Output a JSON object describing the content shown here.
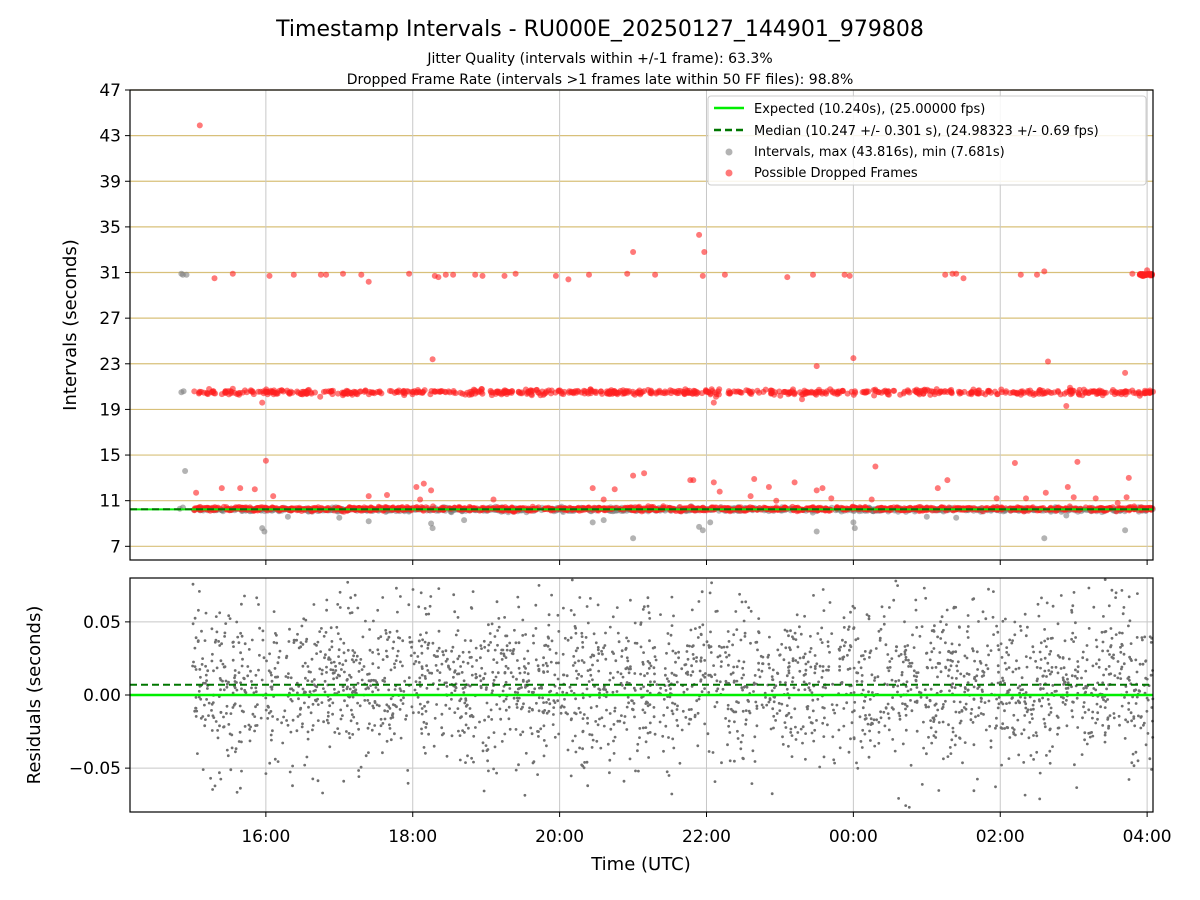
{
  "chart_data": [
    {
      "type": "scatter",
      "title": "Timestamp Intervals - RU000E_20250127_144901_979808",
      "subtitle_lines": [
        "Jitter Quality (intervals within +/-1 frame): 63.3%",
        "Dropped Frame Rate (intervals >1 frames late within 50 FF files): 98.8%"
      ],
      "xlabel": "",
      "ylabel": "Intervals (seconds)",
      "ylim": [
        5.8,
        47
      ],
      "yticks": [
        7,
        11,
        15,
        19,
        23,
        27,
        31,
        35,
        39,
        43,
        47
      ],
      "xlim_hours": [
        14.15,
        28.08
      ],
      "xticks": [
        {
          "hour": 16,
          "label": "16:00"
        },
        {
          "hour": 18,
          "label": "18:00"
        },
        {
          "hour": 20,
          "label": "20:00"
        },
        {
          "hour": 22,
          "label": "22:00"
        },
        {
          "hour": 24,
          "label": "00:00"
        },
        {
          "hour": 26,
          "label": "02:00"
        },
        {
          "hour": 28,
          "label": "04:00"
        }
      ],
      "expected_interval": 10.24,
      "median_interval": 10.247,
      "data_start_hour": 14.82,
      "data_end_hour": 28.08,
      "legend": {
        "placement": "top-right",
        "entries": [
          {
            "label": "Expected (10.240s), (25.00000 fps)",
            "style": "solid-line",
            "color": "#00ee00"
          },
          {
            "label": "Median (10.247 +/- 0.301 s), (24.98323 +/- 0.69 fps)",
            "style": "dashed-line",
            "color": "#007700"
          },
          {
            "label": "Intervals, max (43.816s), min (7.681s)",
            "style": "marker",
            "color": "#808080"
          },
          {
            "label": "Possible Dropped Frames",
            "style": "marker",
            "color": "#ff2020"
          }
        ]
      },
      "series": [
        {
          "name": "Intervals, max (43.816s), min (7.681s)",
          "color": "#808080",
          "points": [
            [
              14.85,
              30.9
            ],
            [
              14.87,
              30.8
            ],
            [
              14.92,
              30.8
            ],
            [
              14.85,
              20.5
            ],
            [
              14.88,
              20.6
            ],
            [
              14.9,
              13.6
            ],
            [
              14.83,
              10.3
            ],
            [
              14.87,
              10.4
            ],
            [
              15.95,
              8.6
            ],
            [
              15.98,
              8.3
            ],
            [
              16.3,
              9.6
            ],
            [
              17.0,
              9.5
            ],
            [
              17.4,
              9.2
            ],
            [
              18.25,
              9.0
            ],
            [
              18.27,
              8.6
            ],
            [
              18.7,
              9.3
            ],
            [
              20.45,
              9.1
            ],
            [
              20.6,
              9.3
            ],
            [
              21.0,
              7.7
            ],
            [
              21.9,
              8.7
            ],
            [
              21.95,
              8.4
            ],
            [
              22.05,
              9.1
            ],
            [
              23.5,
              8.3
            ],
            [
              24.0,
              9.1
            ],
            [
              24.02,
              8.6
            ],
            [
              25.0,
              9.6
            ],
            [
              25.4,
              9.5
            ],
            [
              26.6,
              7.7
            ],
            [
              26.9,
              9.7
            ],
            [
              27.7,
              8.4
            ]
          ]
        },
        {
          "name": "Possible Dropped Frames",
          "color": "#ff2020",
          "points": [
            [
              15.1,
              43.9
            ],
            [
              15.3,
              30.5
            ],
            [
              15.55,
              30.9
            ],
            [
              16.05,
              30.7
            ],
            [
              16.38,
              30.8
            ],
            [
              16.75,
              30.8
            ],
            [
              16.82,
              30.8
            ],
            [
              17.05,
              30.9
            ],
            [
              17.3,
              30.8
            ],
            [
              17.4,
              30.2
            ],
            [
              17.95,
              30.9
            ],
            [
              18.3,
              30.7
            ],
            [
              18.35,
              30.6
            ],
            [
              18.45,
              30.8
            ],
            [
              18.55,
              30.8
            ],
            [
              18.85,
              30.8
            ],
            [
              18.95,
              30.7
            ],
            [
              19.25,
              30.7
            ],
            [
              19.4,
              30.9
            ],
            [
              19.95,
              30.7
            ],
            [
              20.12,
              30.4
            ],
            [
              20.4,
              30.8
            ],
            [
              20.92,
              30.9
            ],
            [
              21.0,
              32.8
            ],
            [
              21.3,
              30.8
            ],
            [
              21.9,
              34.3
            ],
            [
              21.97,
              32.8
            ],
            [
              21.95,
              30.7
            ],
            [
              22.25,
              30.8
            ],
            [
              23.1,
              30.6
            ],
            [
              23.45,
              30.8
            ],
            [
              23.88,
              30.8
            ],
            [
              23.95,
              30.7
            ],
            [
              25.25,
              30.8
            ],
            [
              25.35,
              30.9
            ],
            [
              25.4,
              30.9
            ],
            [
              25.5,
              30.5
            ],
            [
              26.28,
              30.8
            ],
            [
              26.5,
              30.8
            ],
            [
              26.6,
              31.1
            ],
            [
              27.8,
              30.9
            ],
            [
              27.9,
              30.8
            ],
            [
              28.0,
              31.2
            ],
            [
              28.05,
              30.8
            ],
            [
              18.27,
              23.4
            ],
            [
              23.5,
              22.8
            ],
            [
              24.0,
              23.5
            ],
            [
              26.65,
              23.2
            ],
            [
              27.7,
              22.2
            ],
            [
              15.95,
              19.6
            ],
            [
              22.1,
              19.6
            ],
            [
              23.3,
              19.9
            ],
            [
              26.9,
              19.3
            ],
            [
              26.95,
              20.9
            ],
            [
              16.0,
              14.5
            ],
            [
              15.05,
              11.7
            ],
            [
              15.4,
              12.1
            ],
            [
              15.65,
              12.1
            ],
            [
              15.85,
              12.0
            ],
            [
              16.1,
              11.4
            ],
            [
              17.4,
              11.4
            ],
            [
              17.65,
              11.5
            ],
            [
              18.05,
              12.2
            ],
            [
              18.15,
              12.5
            ],
            [
              18.25,
              11.9
            ],
            [
              18.1,
              11.1
            ],
            [
              19.1,
              11.1
            ],
            [
              20.45,
              12.1
            ],
            [
              20.6,
              11.1
            ],
            [
              20.75,
              12.0
            ],
            [
              21.0,
              13.2
            ],
            [
              21.15,
              13.4
            ],
            [
              21.78,
              12.8
            ],
            [
              21.82,
              12.8
            ],
            [
              22.1,
              12.6
            ],
            [
              22.18,
              11.8
            ],
            [
              22.6,
              11.4
            ],
            [
              22.65,
              12.9
            ],
            [
              22.85,
              12.2
            ],
            [
              22.95,
              11.0
            ],
            [
              23.2,
              12.6
            ],
            [
              23.5,
              11.9
            ],
            [
              23.58,
              12.1
            ],
            [
              23.7,
              11.2
            ],
            [
              24.25,
              11.1
            ],
            [
              24.3,
              14.0
            ],
            [
              25.15,
              12.1
            ],
            [
              25.28,
              12.8
            ],
            [
              25.95,
              11.2
            ],
            [
              26.2,
              14.3
            ],
            [
              26.35,
              11.2
            ],
            [
              26.62,
              11.7
            ],
            [
              26.92,
              12.2
            ],
            [
              27.0,
              11.3
            ],
            [
              27.05,
              14.4
            ],
            [
              27.3,
              11.2
            ],
            [
              27.6,
              10.8
            ],
            [
              27.75,
              13.0
            ],
            [
              27.72,
              11.3
            ]
          ]
        }
      ]
    },
    {
      "type": "scatter",
      "title": "",
      "xlabel": "Time (UTC)",
      "ylabel": "Residuals (seconds)",
      "ylim": [
        -0.08,
        0.08
      ],
      "yticks": [
        {
          "value": 0.05,
          "label": "0.05"
        },
        {
          "value": 0.0,
          "label": "0.00"
        },
        {
          "value": -0.05,
          "label": "−0.05"
        }
      ],
      "expected_residual": 0.0,
      "median_residual": 0.007,
      "series": [
        {
          "name": "",
          "color": "#707070",
          "description_points": "dense residual scatter between about -0.08 and 0.08 s, centered near 0.007 s"
        }
      ]
    }
  ]
}
